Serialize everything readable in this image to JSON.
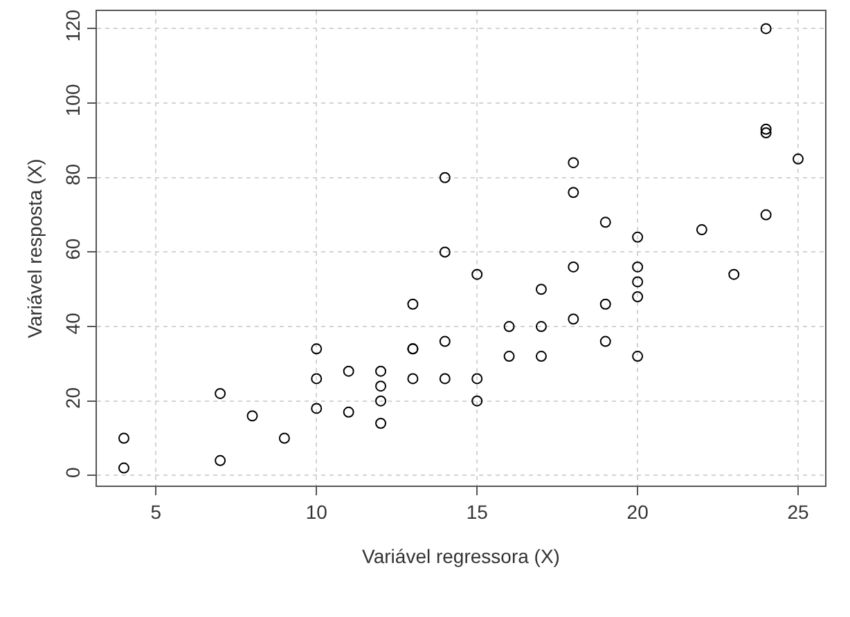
{
  "chart_data": {
    "type": "scatter",
    "xlabel": "Variável regressora (X)",
    "ylabel": "Variável resposta (X)",
    "x": [
      4,
      4,
      7,
      7,
      8,
      9,
      10,
      10,
      10,
      11,
      11,
      12,
      12,
      12,
      12,
      13,
      13,
      13,
      13,
      14,
      14,
      14,
      14,
      15,
      15,
      15,
      16,
      16,
      17,
      17,
      17,
      18,
      18,
      18,
      18,
      19,
      19,
      19,
      20,
      20,
      20,
      20,
      20,
      22,
      23,
      24,
      24,
      24,
      24,
      25
    ],
    "series": [
      {
        "color": "#000000",
        "values": [
          2,
          10,
          4,
          22,
          16,
          10,
          18,
          26,
          34,
          17,
          28,
          14,
          20,
          24,
          28,
          26,
          34,
          34,
          46,
          26,
          36,
          60,
          80,
          20,
          26,
          54,
          32,
          40,
          32,
          40,
          50,
          42,
          56,
          76,
          84,
          36,
          46,
          68,
          32,
          48,
          52,
          56,
          64,
          66,
          54,
          70,
          92,
          93,
          120,
          85
        ]
      }
    ],
    "xlim": [
      3.16,
      25.84
    ],
    "ylim": [
      -2.72,
      124.72
    ],
    "xticks": [
      5,
      10,
      15,
      20,
      25
    ],
    "yticks": [
      0,
      20,
      40,
      60,
      80,
      100,
      120
    ],
    "grid": true,
    "marker": "circle",
    "legend": false
  }
}
